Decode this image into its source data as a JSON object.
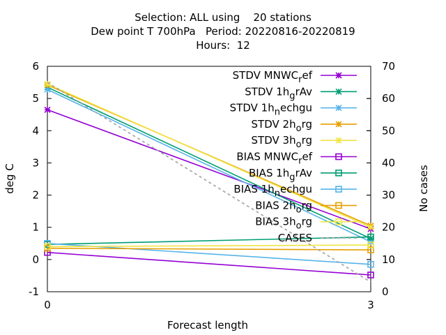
{
  "title_lines": [
    "Selection: ALL using    20 stations",
    "Dew point T 700hPa   Period: 20220816-20220819",
    "Hours:  12"
  ],
  "chart_data": {
    "type": "line",
    "xlabel": "Forecast length",
    "ylabel": "deg C",
    "y2label": "No cases",
    "x": [
      0,
      3
    ],
    "xticks": [
      "0",
      "3"
    ],
    "xlim": [
      0,
      3
    ],
    "ylim": [
      -1,
      6
    ],
    "yticks": [
      "-1",
      "0",
      "1",
      "2",
      "3",
      "4",
      "5",
      "6"
    ],
    "y2lim": [
      0,
      70
    ],
    "y2ticks": [
      "0",
      "10",
      "20",
      "30",
      "40",
      "50",
      "60",
      "70"
    ],
    "legend_position": "top-right",
    "series": [
      {
        "name": "STDV MNWC_ref",
        "label_main": "STDV MNWC",
        "label_sub": "r",
        "label_tail": "ef",
        "color": "#9400d3",
        "marker": "x-star",
        "axis": "y",
        "values": [
          4.65,
          0.95
        ]
      },
      {
        "name": "STDV 1h_grAv",
        "label_main": "STDV 1h",
        "label_sub": "g",
        "label_tail": "rAv",
        "color": "#009e73",
        "marker": "x-star",
        "axis": "y",
        "values": [
          5.35,
          0.65
        ]
      },
      {
        "name": "STDV 1h_nechgu",
        "label_main": "STDV 1h",
        "label_sub": "n",
        "label_tail": "echgu",
        "color": "#56b4e9",
        "marker": "x-star",
        "axis": "y",
        "values": [
          5.28,
          0.55
        ]
      },
      {
        "name": "STDV 2h_org",
        "label_main": "STDV 2h",
        "label_sub": "o",
        "label_tail": "rg",
        "color": "#e69f00",
        "marker": "x-star",
        "axis": "y",
        "values": [
          5.42,
          1.05
        ]
      },
      {
        "name": "STDV 3h_org",
        "label_main": "STDV 3h",
        "label_sub": "o",
        "label_tail": "rg",
        "color": "#f0e442",
        "marker": "x-star",
        "axis": "y",
        "values": [
          5.45,
          1.0
        ]
      },
      {
        "name": "BIAS MNWC_ref",
        "label_main": "BIAS MNWC",
        "label_sub": "r",
        "label_tail": "ef",
        "color": "#9400d3",
        "marker": "square",
        "axis": "y",
        "values": [
          0.22,
          -0.48
        ]
      },
      {
        "name": "BIAS 1h_grAv",
        "label_main": "BIAS 1h",
        "label_sub": "g",
        "label_tail": "rAv",
        "color": "#009e73",
        "marker": "square",
        "axis": "y",
        "values": [
          0.47,
          0.7
        ]
      },
      {
        "name": "BIAS 1h_nechgu",
        "label_main": "BIAS 1h",
        "label_sub": "n",
        "label_tail": "echgu",
        "color": "#56b4e9",
        "marker": "square",
        "axis": "y",
        "values": [
          0.5,
          -0.15
        ]
      },
      {
        "name": "BIAS 2h_org",
        "label_main": "BIAS 2h",
        "label_sub": "o",
        "label_tail": "rg",
        "color": "#e69f00",
        "marker": "square",
        "axis": "y",
        "values": [
          0.35,
          0.3
        ]
      },
      {
        "name": "BIAS 3h_org",
        "label_main": "BIAS 3h",
        "label_sub": "o",
        "label_tail": "rg",
        "color": "#f0e442",
        "marker": "square",
        "axis": "y",
        "values": [
          0.4,
          0.45
        ]
      },
      {
        "name": "CASES",
        "label_main": "CASES",
        "label_sub": "",
        "label_tail": "",
        "color": "#a0a0a0",
        "marker": "none",
        "dashed": true,
        "axis": "y2",
        "values": [
          65,
          3
        ]
      }
    ]
  }
}
